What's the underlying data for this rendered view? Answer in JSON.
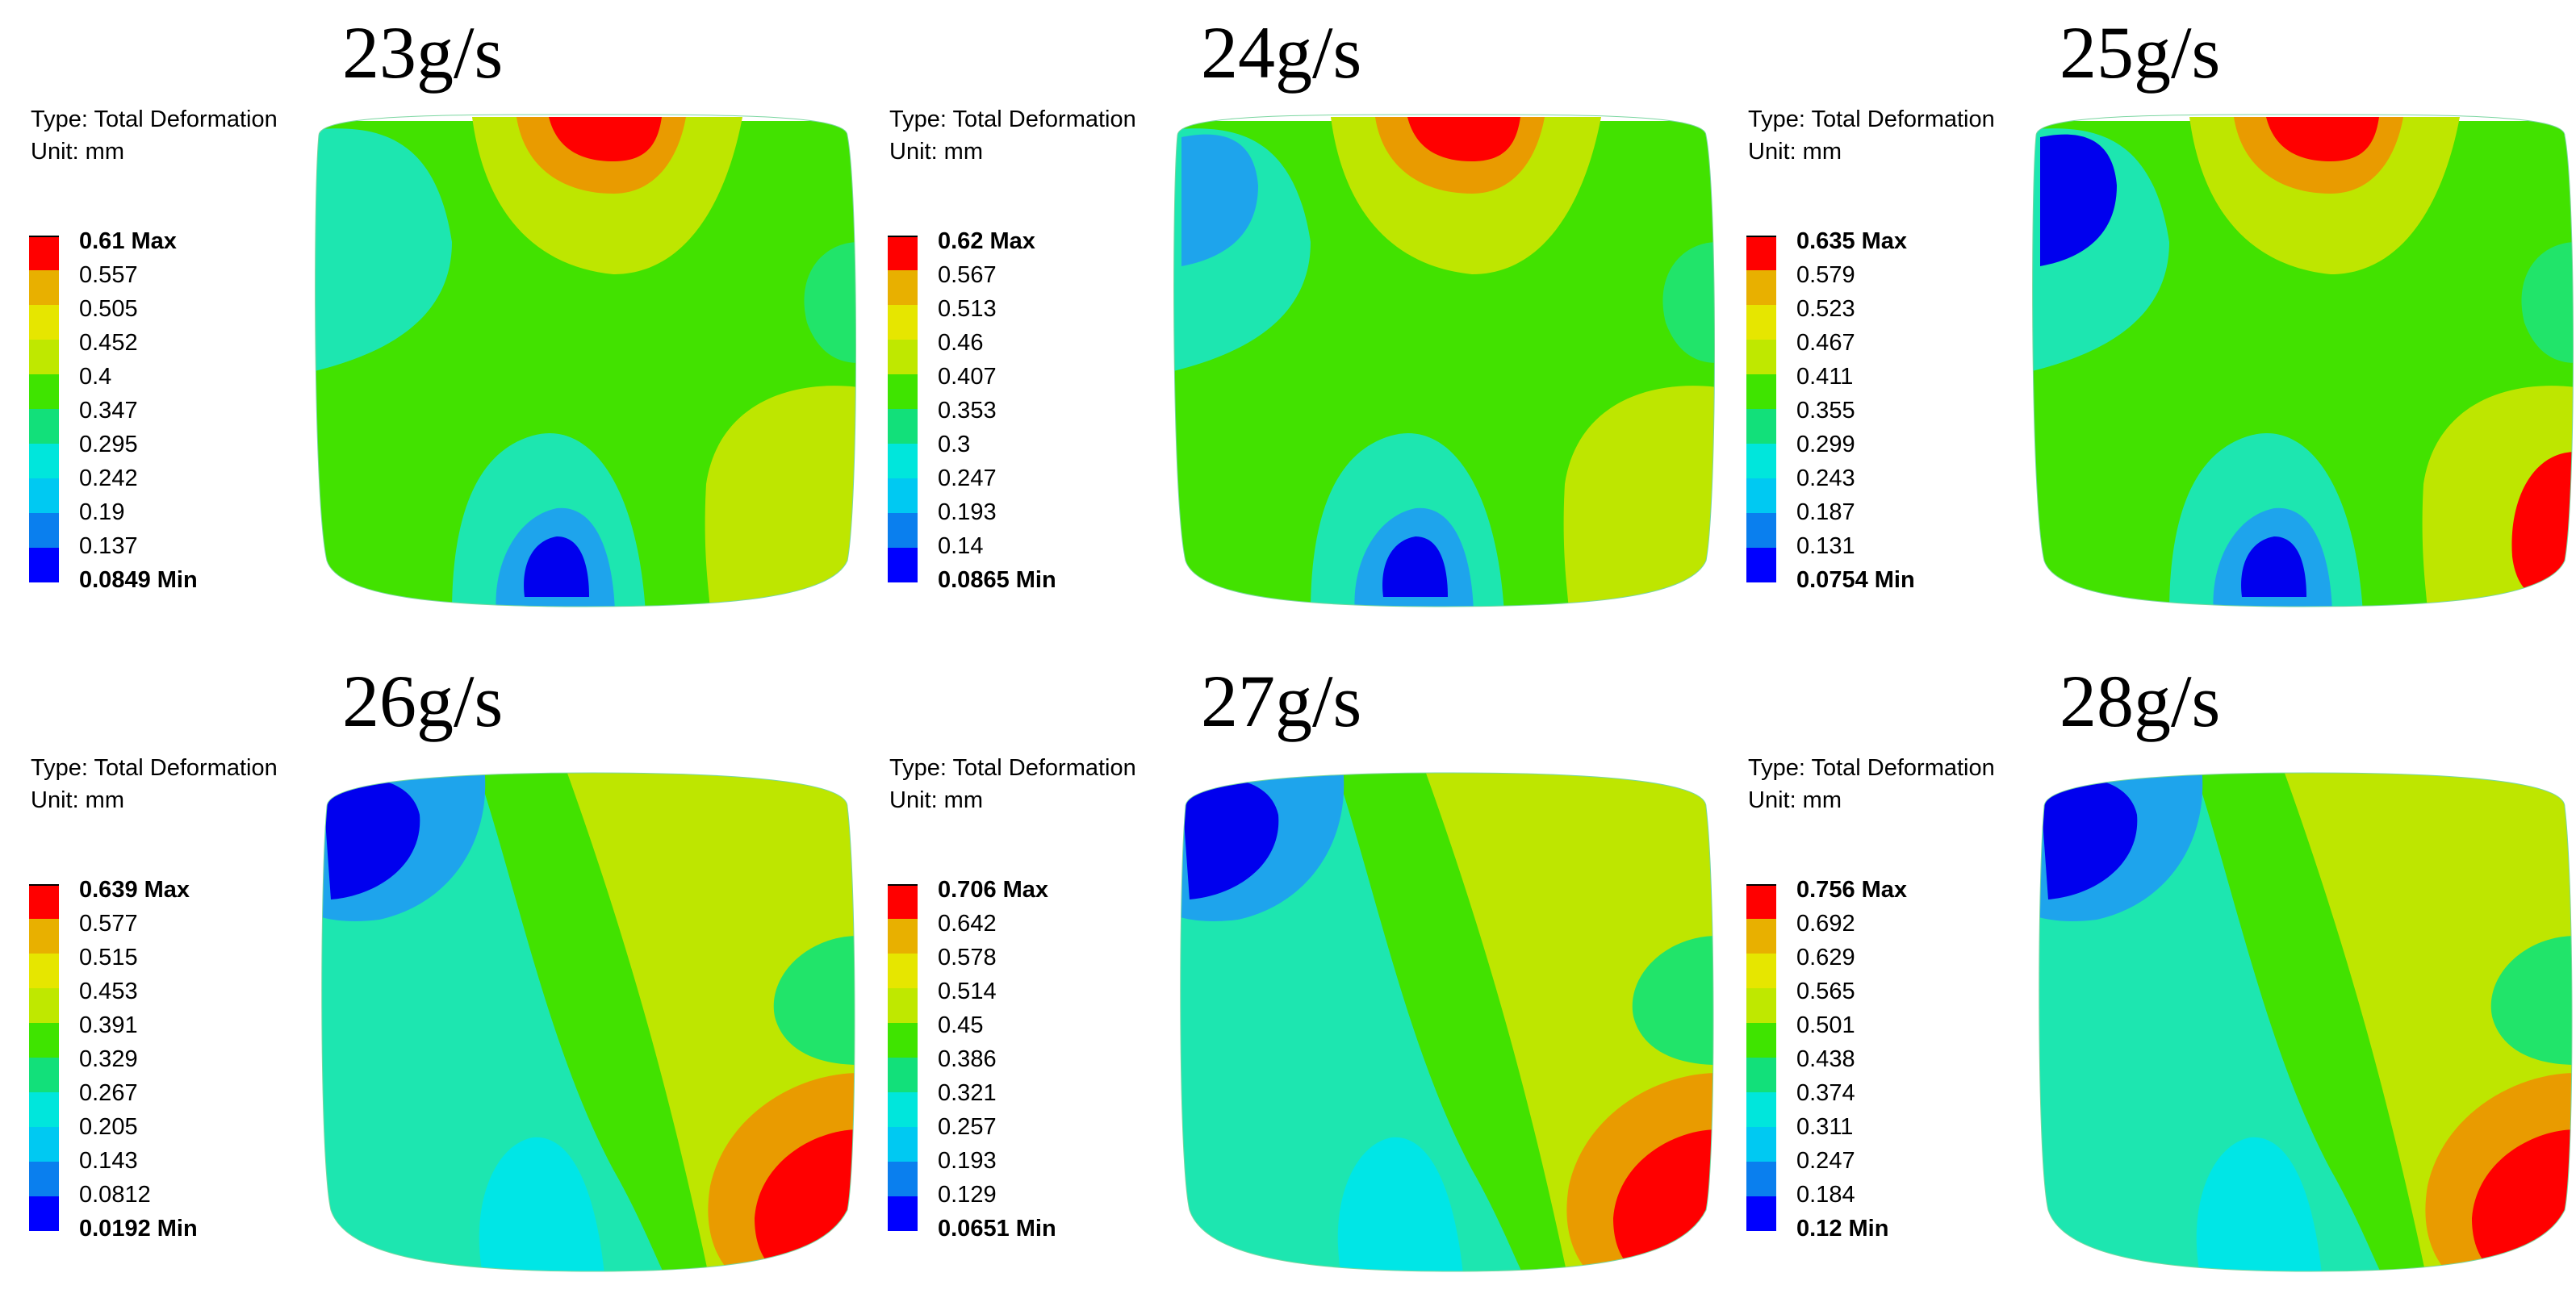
{
  "legend_type": "Type: Total Deformation",
  "legend_unit": "Unit: mm",
  "colors": {
    "red": "#ff0000",
    "orange": "#e99b00",
    "yellow": "#e3e300",
    "yellow_green": "#bee600",
    "green": "#42e200",
    "light_green": "#21e46a",
    "cyan_green": "#1de6b0",
    "cyan": "#00e6e6",
    "light_blue": "#1ea4ec",
    "blue": "#0000ee"
  },
  "legend_colors": [
    "#ff0000",
    "#e8b000",
    "#e6e600",
    "#bfe800",
    "#3fe400",
    "#12e07a",
    "#00e6dc",
    "#00c9f2",
    "#0a7fee",
    "#0000ff"
  ],
  "panels": [
    {
      "title": "23g/s",
      "levels": [
        "0.61 Max",
        "0.557",
        "0.505",
        "0.452",
        "0.4",
        "0.347",
        "0.295",
        "0.242",
        "0.19",
        "0.137",
        "0.0849 Min"
      ]
    },
    {
      "title": "24g/s",
      "levels": [
        "0.62 Max",
        "0.567",
        "0.513",
        "0.46",
        "0.407",
        "0.353",
        "0.3",
        "0.247",
        "0.193",
        "0.14",
        "0.0865 Min"
      ]
    },
    {
      "title": "25g/s",
      "levels": [
        "0.635 Max",
        "0.579",
        "0.523",
        "0.467",
        "0.411",
        "0.355",
        "0.299",
        "0.243",
        "0.187",
        "0.131",
        "0.0754 Min"
      ]
    },
    {
      "title": "26g/s",
      "levels": [
        "0.639 Max",
        "0.577",
        "0.515",
        "0.453",
        "0.391",
        "0.329",
        "0.267",
        "0.205",
        "0.143",
        "0.0812",
        "0.0192 Min"
      ]
    },
    {
      "title": "27g/s",
      "levels": [
        "0.706 Max",
        "0.642",
        "0.578",
        "0.514",
        "0.45",
        "0.386",
        "0.321",
        "0.257",
        "0.193",
        "0.129",
        "0.0651 Min"
      ]
    },
    {
      "title": "28g/s",
      "levels": [
        "0.756 Max",
        "0.692",
        "0.629",
        "0.565",
        "0.501",
        "0.438",
        "0.374",
        "0.311",
        "0.247",
        "0.184",
        "0.12 Min"
      ]
    }
  ]
}
